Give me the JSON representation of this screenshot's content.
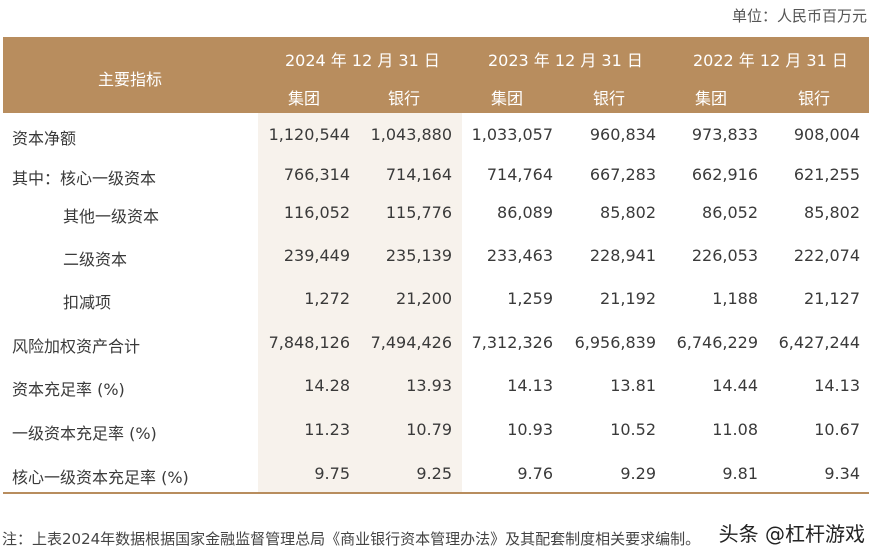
{
  "unit": "单位：人民币百万元",
  "header": {
    "indicator": "主要指标",
    "years": [
      "2024 年 12 月 31 日",
      "2023 年 12 月 31 日",
      "2022 年 12 月 31 日"
    ],
    "sub": [
      "集团",
      "银行",
      "集团",
      "银行",
      "集团",
      "银行"
    ]
  },
  "rows": [
    {
      "label": "资本净额",
      "values": [
        "1,120,544",
        "1,043,880",
        "1,033,057",
        "960,834",
        "973,833",
        "908,004"
      ]
    },
    {
      "label": "其中：核心一级资本",
      "values": [
        "766,314",
        "714,164",
        "714,764",
        "667,283",
        "662,916",
        "621,255"
      ]
    },
    {
      "label": "其他一级资本",
      "values": [
        "116,052",
        "115,776",
        "86,089",
        "85,802",
        "86,052",
        "85,802"
      ]
    },
    {
      "label": "二级资本",
      "values": [
        "239,449",
        "235,139",
        "233,463",
        "228,941",
        "226,053",
        "222,074"
      ]
    },
    {
      "label": "扣减项",
      "values": [
        "1,272",
        "21,200",
        "1,259",
        "21,192",
        "1,188",
        "21,127"
      ]
    },
    {
      "label": "风险加权资产合计",
      "values": [
        "7,848,126",
        "7,494,426",
        "7,312,326",
        "6,956,839",
        "6,746,229",
        "6,427,244"
      ]
    },
    {
      "label": "资本充足率 (%)",
      "values": [
        "14.28",
        "13.93",
        "14.13",
        "13.81",
        "14.44",
        "14.13"
      ]
    },
    {
      "label": "一级资本充足率 (%)",
      "values": [
        "11.23",
        "10.79",
        "10.93",
        "10.52",
        "11.08",
        "10.67"
      ]
    },
    {
      "label": "核心一级资本充足率 (%)",
      "values": [
        "9.75",
        "9.25",
        "9.76",
        "9.29",
        "9.81",
        "9.34"
      ]
    }
  ],
  "note": "注：上表2024年数据根据国家金融监督管理总局《商业银行资本管理办法》及其配套制度相关要求编制。",
  "watermark": "头条 @杠杆游戏"
}
